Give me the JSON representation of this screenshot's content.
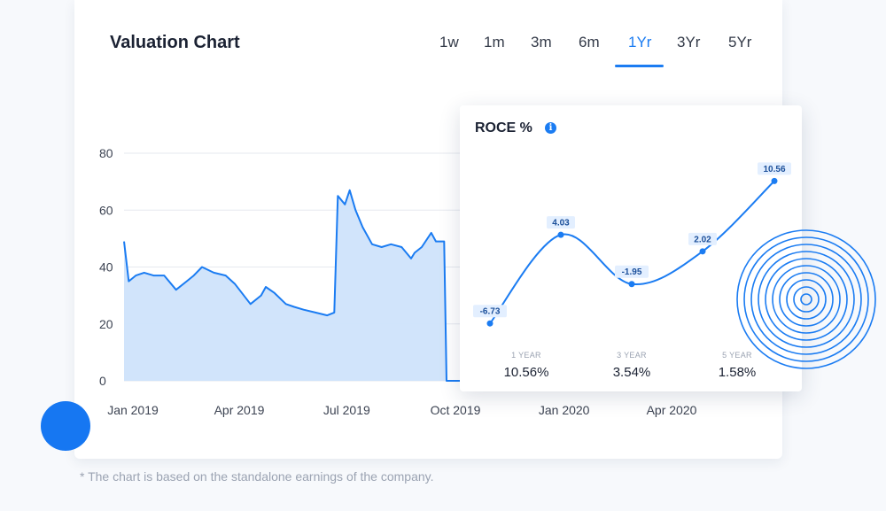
{
  "card": {
    "title": "Valuation Chart"
  },
  "tabs": [
    {
      "label": "1w"
    },
    {
      "label": "1m"
    },
    {
      "label": "3m"
    },
    {
      "label": "6m"
    },
    {
      "label": "1Yr",
      "active": true
    },
    {
      "label": "3Yr"
    },
    {
      "label": "5Yr"
    }
  ],
  "colors": {
    "accent": "#1b7cf2",
    "area_fill": "#cfe3fb",
    "grid": "#e6e9ef"
  },
  "chart_data": [
    {
      "type": "area",
      "y_ticks": [
        "0",
        "20",
        "40",
        "60",
        "80"
      ],
      "x_ticks": [
        "Jan 2019",
        "Apr 2019",
        "Jul 2019",
        "Oct 2019",
        "Jan 2020",
        "Apr 2020"
      ],
      "ylim": [
        0,
        80
      ],
      "grid": true,
      "series": [
        {
          "x": [
            "2019-01-01",
            "2019-01-05",
            "2019-01-11",
            "2019-01-18",
            "2019-01-26",
            "2019-02-04",
            "2019-02-14",
            "2019-02-23",
            "2019-03-01",
            "2019-03-08",
            "2019-03-18",
            "2019-03-28",
            "2019-04-05",
            "2019-04-18",
            "2019-04-27",
            "2019-05-01",
            "2019-05-08",
            "2019-05-18",
            "2019-05-25",
            "2019-06-02",
            "2019-06-12",
            "2019-06-22",
            "2019-06-28",
            "2019-07-01",
            "2019-07-07",
            "2019-07-11",
            "2019-07-16",
            "2019-07-22",
            "2019-07-30",
            "2019-08-07",
            "2019-08-15",
            "2019-08-24",
            "2019-09-01",
            "2019-09-04",
            "2019-09-10",
            "2019-09-18",
            "2019-09-22",
            "2019-09-29",
            "2019-10-01",
            "2019-10-10"
          ],
          "y": [
            49,
            35,
            37,
            38,
            37,
            37,
            32,
            35,
            37,
            40,
            38,
            37,
            34,
            27,
            30,
            33,
            31,
            27,
            26,
            25,
            24,
            23,
            24,
            65,
            62,
            67,
            60,
            54,
            48,
            47,
            48,
            47,
            43,
            45,
            47,
            52,
            49,
            49,
            0,
            0
          ]
        }
      ]
    },
    {
      "type": "line",
      "title": "ROCE %",
      "categories": [
        "",
        "",
        "",
        "",
        ""
      ],
      "values": [
        -6.73,
        4.03,
        -1.95,
        2.02,
        10.56
      ],
      "data_labels": [
        "-6.73",
        "4.03",
        "-1.95",
        "2.02",
        "10.56"
      ]
    }
  ],
  "roce": {
    "title": "ROCE %",
    "info_icon": "info-icon",
    "stats": [
      {
        "label": "1 YEAR",
        "value": "10.56%"
      },
      {
        "label": "3 YEAR",
        "value": "3.54%"
      },
      {
        "label": "5 YEAR",
        "value": "1.58%"
      }
    ]
  },
  "footnote": "* The chart is based on the standalone earnings of the company."
}
